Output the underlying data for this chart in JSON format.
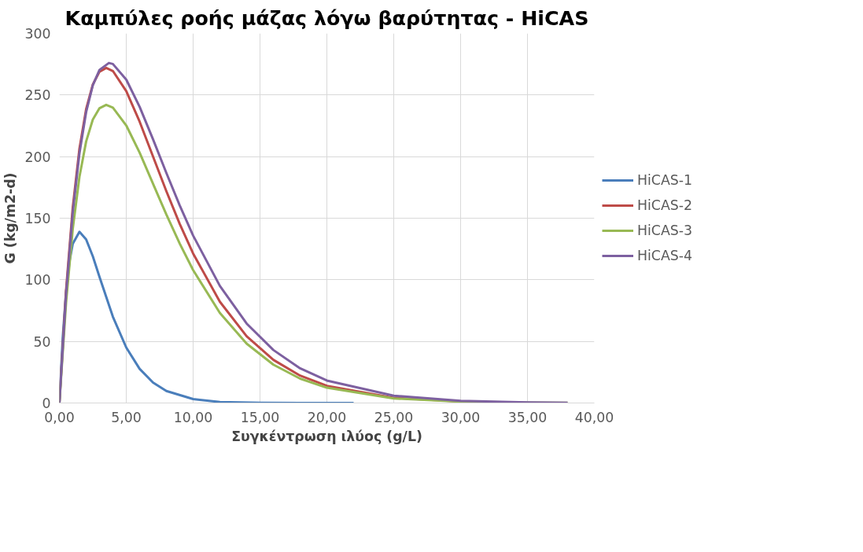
{
  "chart_data": {
    "type": "line",
    "title": "Καμπύλες ροής μάζας λόγω βαρύτητας - HiCAS",
    "xlabel": "Συγκέντρωση ιλύος (g/L)",
    "ylabel": "G (kg/m2-d)",
    "xlim": [
      0,
      40
    ],
    "xticks": [
      {
        "value": 0,
        "label": "0,00"
      },
      {
        "value": 5,
        "label": "5,00"
      },
      {
        "value": 10,
        "label": "10,00"
      },
      {
        "value": 15,
        "label": "15,00"
      },
      {
        "value": 20,
        "label": "20,00"
      },
      {
        "value": 25,
        "label": "25,00"
      },
      {
        "value": 30,
        "label": "30,00"
      },
      {
        "value": 35,
        "label": "35,00"
      },
      {
        "value": 40,
        "label": "40,00"
      }
    ],
    "ylim": [
      0,
      300
    ],
    "yticks": [
      0,
      50,
      100,
      150,
      200,
      250,
      300
    ],
    "grid": true,
    "legend": "right",
    "line_style": "solid",
    "series": [
      {
        "name": "HiCAS-1",
        "color": "#4a7ebb",
        "x": [
          0,
          0.25,
          0.5,
          0.75,
          1,
          1.5,
          2,
          2.5,
          3,
          4,
          5,
          6,
          7,
          8,
          10,
          12,
          15,
          18,
          22
        ],
        "values": [
          0,
          53.3,
          90.2,
          114.6,
          129.3,
          139,
          132.8,
          119,
          102.3,
          70,
          45,
          27.7,
          16.6,
          9.7,
          3.2,
          0.8,
          0.2,
          0,
          0
        ]
      },
      {
        "name": "HiCAS-2",
        "color": "#be4b48",
        "x": [
          0,
          0.5,
          1,
          1.5,
          2,
          2.5,
          3,
          3.5,
          4,
          5,
          6,
          7,
          8,
          9,
          10,
          12,
          14,
          16,
          18,
          20,
          25,
          30
        ],
        "values": [
          0,
          91.6,
          158.8,
          206.5,
          238.6,
          258.6,
          269,
          272,
          269.5,
          253.2,
          228.4,
          200.1,
          171.9,
          145.3,
          121.3,
          82.2,
          54.2,
          35,
          22.2,
          13.9,
          4.2,
          1.2
        ]
      },
      {
        "name": "HiCAS-3",
        "color": "#98b954",
        "x": [
          0,
          0.5,
          1,
          1.5,
          2,
          2.5,
          3,
          3.5,
          4,
          5,
          6,
          7,
          8,
          9,
          10,
          12,
          14,
          16,
          18,
          20,
          25,
          30,
          35,
          38
        ],
        "values": [
          0,
          81.5,
          141.3,
          183.7,
          212.3,
          230.1,
          239.3,
          242,
          239.8,
          225.3,
          203.2,
          178,
          152.9,
          129.3,
          107.9,
          73.1,
          48.2,
          31.1,
          19.8,
          12.4,
          3.7,
          1.1,
          0.3,
          0.1
        ]
      },
      {
        "name": "HiCAS-4",
        "color": "#7d60a0",
        "x": [
          0,
          0.5,
          1,
          1.5,
          2,
          2.5,
          3,
          3.7,
          4,
          5,
          6,
          7,
          8,
          9,
          10,
          12,
          14,
          16,
          18,
          20,
          25,
          30,
          35,
          38
        ],
        "values": [
          0,
          88.6,
          154.8,
          202.8,
          236.2,
          258,
          270.4,
          276,
          275.2,
          262.5,
          240.4,
          214.1,
          186.7,
          160.3,
          135.9,
          95,
          64.5,
          43,
          28.1,
          18.2,
          5.9,
          1.8,
          0.5,
          0.2
        ]
      }
    ]
  }
}
